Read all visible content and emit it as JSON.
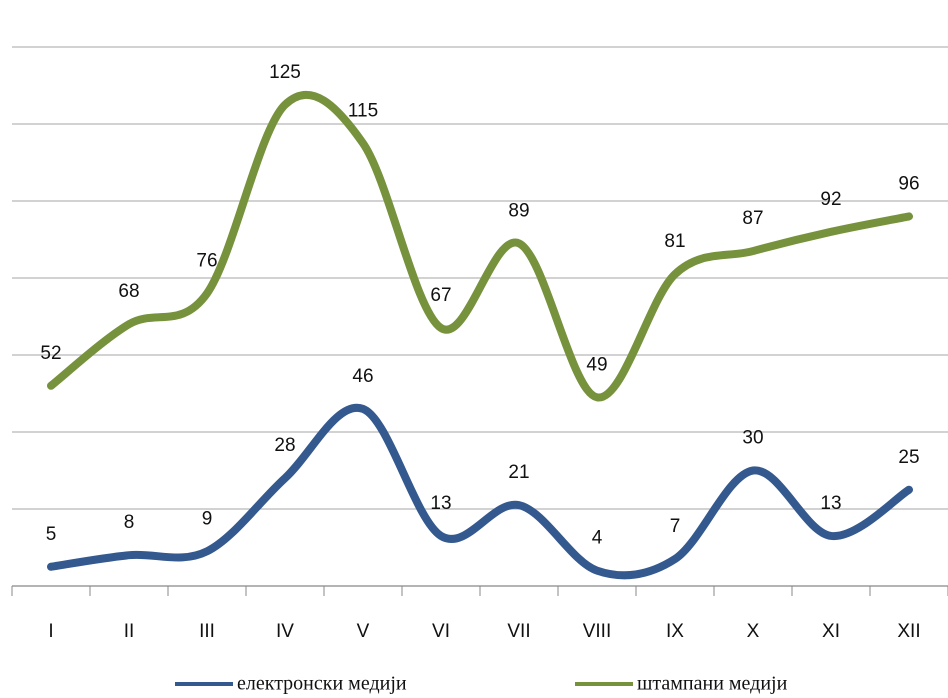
{
  "chart_data": {
    "type": "line",
    "categories": [
      "I",
      "II",
      "III",
      "IV",
      "V",
      "VI",
      "VII",
      "VIII",
      "IX",
      "X",
      "XI",
      "XII"
    ],
    "series": [
      {
        "name": "електронски медији",
        "color": "#34598f",
        "values": [
          5,
          8,
          9,
          28,
          46,
          13,
          21,
          4,
          7,
          30,
          13,
          25
        ]
      },
      {
        "name": "штампани медији",
        "color": "#76923c",
        "values": [
          52,
          68,
          76,
          125,
          115,
          67,
          89,
          49,
          81,
          87,
          92,
          96
        ]
      }
    ],
    "ylim": [
      0,
      140
    ],
    "yticks": [
      0,
      20,
      40,
      60,
      80,
      100,
      120,
      140
    ],
    "grid": true,
    "legend": "bottom"
  }
}
